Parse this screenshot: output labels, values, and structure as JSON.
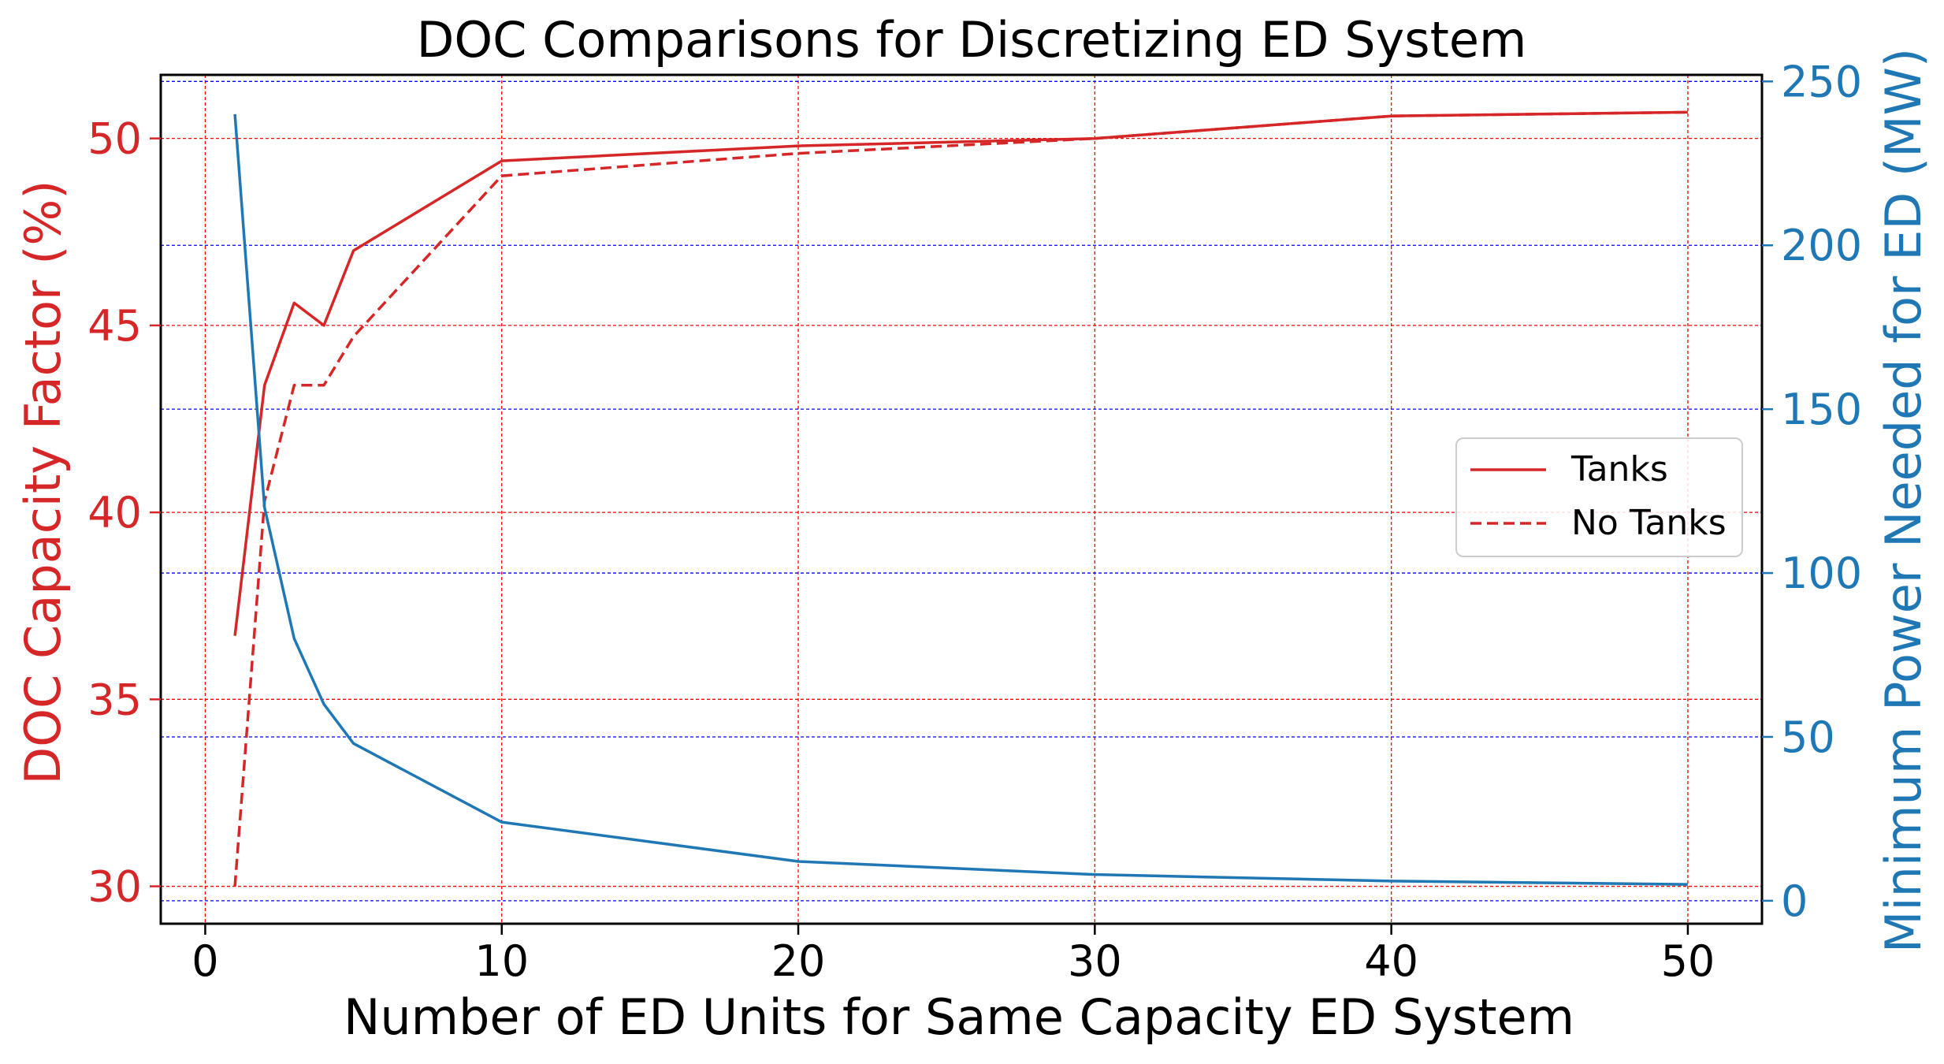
{
  "chart_data": {
    "type": "line",
    "title": "DOC Comparisons for Discretizing ED System",
    "xlabel": "Number of ED Units for Same Capacity ED System",
    "ylabel_left": "DOC Capacity Factor (%)",
    "ylabel_right": "Minimum Power Needed for ED (MW)",
    "xlim": [
      -1.5,
      52.5
    ],
    "ylim_left": [
      29.0,
      51.7
    ],
    "ylim_right": [
      -7,
      252
    ],
    "x_ticks": [
      0,
      10,
      20,
      30,
      40,
      50
    ],
    "x_tick_labels": [
      "0",
      "10",
      "20",
      "30",
      "40",
      "50"
    ],
    "y_left_ticks": [
      30,
      35,
      40,
      45,
      50
    ],
    "y_left_tick_labels": [
      "30",
      "35",
      "40",
      "45",
      "50"
    ],
    "y_right_ticks": [
      0,
      50,
      100,
      150,
      200,
      250
    ],
    "y_right_tick_labels": [
      "0",
      "50",
      "100",
      "150",
      "200",
      "250"
    ],
    "grid": "on",
    "legend_position": "center-right",
    "colors": {
      "left_axis": "#d62728",
      "right_axis": "#1f77b4",
      "grid_left": "#ff0000",
      "grid_right": "#0000ff"
    },
    "series": [
      {
        "name": "Tanks",
        "axis": "left",
        "style": "solid",
        "in_legend": true,
        "x": [
          1,
          2,
          3,
          4,
          5,
          10,
          20,
          30,
          40,
          50
        ],
        "values": [
          36.7,
          43.4,
          45.6,
          45.0,
          47.0,
          49.4,
          49.8,
          50.0,
          50.6,
          50.7
        ]
      },
      {
        "name": "No Tanks",
        "axis": "left",
        "style": "dashed",
        "in_legend": true,
        "x": [
          1,
          2,
          3,
          4,
          5,
          10,
          20,
          30,
          40,
          50
        ],
        "values": [
          30.0,
          40.3,
          43.4,
          43.4,
          44.7,
          49.0,
          49.6,
          50.0,
          50.6,
          50.7
        ]
      },
      {
        "name": "Minimum Power",
        "axis": "right",
        "style": "solid",
        "in_legend": false,
        "x": [
          1,
          2,
          3,
          4,
          5,
          10,
          20,
          30,
          40,
          50
        ],
        "values": [
          240,
          120,
          80,
          60,
          48,
          24,
          12,
          8,
          6,
          5
        ]
      }
    ]
  }
}
